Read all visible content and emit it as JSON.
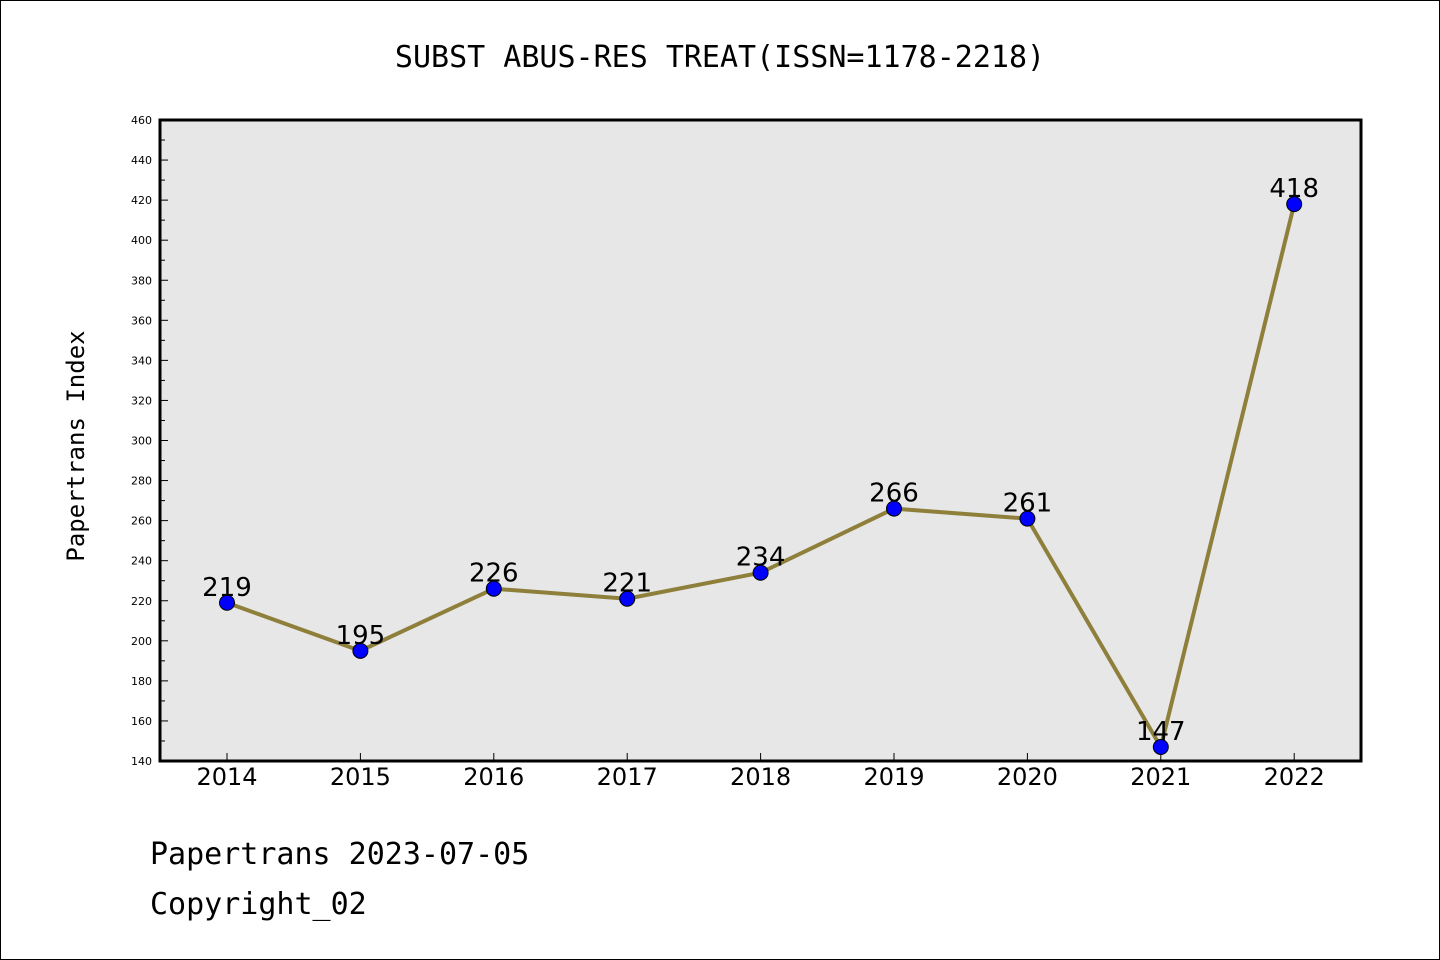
{
  "chart_data": {
    "type": "line",
    "title": "SUBST ABUS-RES TREAT(ISSN=1178-2218)",
    "xlabel": "",
    "ylabel": "Papertrans Index",
    "categories": [
      "2014",
      "2015",
      "2016",
      "2017",
      "2018",
      "2019",
      "2020",
      "2021",
      "2022"
    ],
    "values": [
      219,
      195,
      226,
      221,
      234,
      266,
      261,
      147,
      418
    ],
    "ylim": [
      140,
      460
    ],
    "yticks": [
      140,
      160,
      180,
      200,
      220,
      240,
      260,
      280,
      300,
      320,
      340,
      360,
      380,
      400,
      420,
      440,
      460
    ],
    "grid": false,
    "legend": "none",
    "colors": {
      "line": "#8e7f3b",
      "marker": "#0000ff",
      "plot_background": "#e7e7e7",
      "frame": "#000000"
    }
  },
  "footer": {
    "line1": "Papertrans 2023-07-05",
    "line2": "Copyright_02"
  }
}
